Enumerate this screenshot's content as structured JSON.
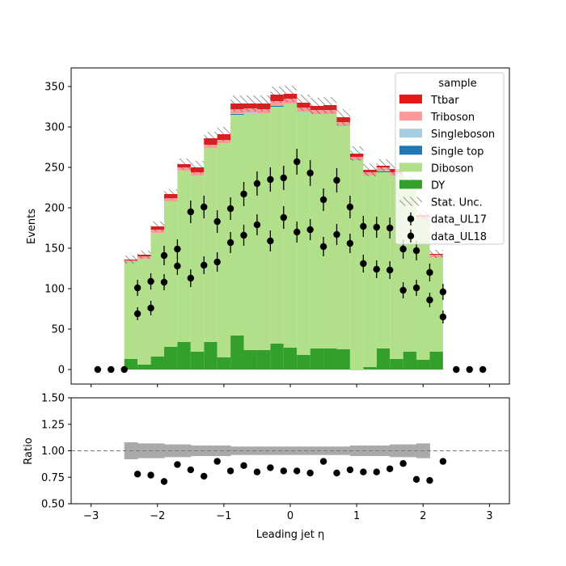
{
  "chart_data": [
    {
      "type": "bar",
      "ylabel": "Events",
      "xlim": [
        -3.3,
        3.3
      ],
      "ylim": [
        -18,
        373
      ],
      "yticks": [
        0,
        50,
        100,
        150,
        200,
        250,
        300,
        350
      ],
      "bin_edges": [
        -2.5,
        -2.3,
        -2.1,
        -1.9,
        -1.7,
        -1.5,
        -1.3,
        -1.1,
        -0.9,
        -0.7,
        -0.5,
        -0.3,
        -0.1,
        0.1,
        0.3,
        0.5,
        0.7,
        0.9,
        1.1,
        1.3,
        1.5,
        1.7,
        1.9,
        2.1,
        2.3
      ],
      "stack_order": [
        "DY",
        "Diboson",
        "Single top",
        "Singleboson",
        "Triboson",
        "Ttbar"
      ],
      "series": [
        {
          "name": "DY",
          "color": "#33a02c",
          "values": [
            13,
            6,
            16,
            28,
            34,
            22,
            34,
            15,
            42,
            24,
            24,
            32,
            27,
            18,
            26,
            26,
            25,
            -1,
            3,
            26,
            13,
            22,
            12,
            22
          ]
        },
        {
          "name": "Diboson",
          "color": "#b2df8a",
          "values": [
            120,
            131,
            153,
            180,
            212,
            218,
            240,
            265,
            273,
            293,
            293,
            293,
            302,
            300,
            290,
            290,
            276,
            260,
            237,
            218,
            227,
            205,
            174,
            117
          ]
        },
        {
          "name": "Single top",
          "color": "#1f78b4",
          "values": [
            0,
            0,
            0,
            0,
            0,
            0,
            0,
            0,
            1,
            0,
            0,
            1,
            0,
            0,
            0,
            0,
            0,
            0,
            0,
            1,
            0,
            0,
            0,
            0
          ]
        },
        {
          "name": "Singleboson",
          "color": "#a6cee3",
          "values": [
            0,
            0,
            0,
            0,
            0,
            0,
            0,
            0,
            1,
            1,
            0,
            0,
            0,
            1,
            0,
            0,
            0,
            0,
            0,
            1,
            0,
            0,
            0,
            0
          ]
        },
        {
          "name": "Triboson",
          "color": "#fb9a99",
          "values": [
            2,
            3,
            4,
            4,
            4,
            4,
            4,
            4,
            5,
            5,
            5,
            6,
            6,
            5,
            5,
            5,
            5,
            4,
            4,
            4,
            4,
            3,
            3,
            3
          ]
        },
        {
          "name": "Ttbar",
          "color": "#e31a1c",
          "values": [
            1,
            2,
            4,
            5,
            4,
            6,
            8,
            7,
            7,
            6,
            7,
            8,
            6,
            6,
            5,
            6,
            6,
            4,
            3,
            2,
            4,
            2,
            2,
            1
          ]
        }
      ],
      "stat_unc": [
        5,
        5,
        6,
        6,
        7,
        8,
        8,
        9,
        10,
        10,
        10,
        10,
        10,
        10,
        10,
        10,
        10,
        9,
        8,
        8,
        8,
        7,
        6,
        5
      ],
      "stat_unc_color": "#555555",
      "data": [
        {
          "name": "data_UL17",
          "x": [
            -2.9,
            -2.7,
            -2.5,
            -2.3,
            -2.1,
            -1.9,
            -1.7,
            -1.5,
            -1.3,
            -1.1,
            -0.9,
            -0.7,
            -0.5,
            -0.3,
            -0.1,
            0.1,
            0.3,
            0.5,
            0.7,
            0.9,
            1.1,
            1.3,
            1.5,
            1.7,
            1.9,
            2.1,
            2.3,
            2.5,
            2.7,
            2.9
          ],
          "y": [
            0,
            0,
            0,
            101,
            109,
            141,
            149,
            195,
            201,
            183,
            199,
            217,
            230,
            235,
            237,
            257,
            243,
            210,
            234,
            201,
            177,
            176,
            175,
            149,
            147,
            120,
            96,
            0,
            0,
            0
          ],
          "err": [
            0,
            0,
            0,
            10,
            10,
            12,
            12,
            14,
            14,
            14,
            14,
            15,
            15,
            15,
            15,
            16,
            16,
            14,
            15,
            14,
            13,
            13,
            13,
            12,
            12,
            11,
            10,
            0,
            0,
            0
          ]
        },
        {
          "name": "data_UL18",
          "x": [
            -2.3,
            -2.1,
            -1.9,
            -1.7,
            -1.5,
            -1.3,
            -1.1,
            -0.9,
            -0.7,
            -0.5,
            -0.3,
            -0.1,
            0.1,
            0.3,
            0.5,
            0.7,
            0.9,
            1.1,
            1.3,
            1.5,
            1.7,
            1.9,
            2.1,
            2.3
          ],
          "y": [
            69,
            76,
            108,
            128,
            113,
            129,
            133,
            157,
            166,
            179,
            159,
            188,
            170,
            173,
            152,
            167,
            156,
            131,
            124,
            123,
            98,
            101,
            86,
            65
          ],
          "err": [
            8,
            9,
            10,
            11,
            11,
            11,
            12,
            13,
            13,
            13,
            13,
            14,
            13,
            13,
            12,
            13,
            12,
            11,
            11,
            11,
            10,
            10,
            9,
            8
          ]
        }
      ],
      "legend": {
        "title": "sample",
        "placement": "upper-right",
        "entries": [
          "Ttbar",
          "Triboson",
          "Singleboson",
          "Single top",
          "Diboson",
          "DY",
          "Stat. Unc.",
          "data_UL17",
          "data_UL18"
        ]
      }
    },
    {
      "type": "scatter",
      "xlabel": "Leading jet  η",
      "ylabel": "Ratio",
      "xlim": [
        -3.3,
        3.3
      ],
      "ylim": [
        0.5,
        1.5
      ],
      "xticks": [
        -3,
        -2,
        -1,
        0,
        1,
        2,
        3
      ],
      "yticks": [
        "0.50",
        "0.75",
        "1.00",
        "1.25",
        "1.50"
      ],
      "reference_line": 1.0,
      "unc_band": {
        "color": "#aaaaaa",
        "lo": [
          0.92,
          0.93,
          0.93,
          0.94,
          0.94,
          0.95,
          0.95,
          0.95,
          0.96,
          0.96,
          0.96,
          0.96,
          0.96,
          0.96,
          0.96,
          0.96,
          0.96,
          0.95,
          0.95,
          0.95,
          0.94,
          0.94,
          0.93,
          0.93
        ],
        "hi": [
          1.08,
          1.07,
          1.07,
          1.06,
          1.06,
          1.05,
          1.05,
          1.05,
          1.04,
          1.04,
          1.04,
          1.04,
          1.04,
          1.04,
          1.04,
          1.04,
          1.04,
          1.05,
          1.05,
          1.05,
          1.06,
          1.06,
          1.07,
          1.07
        ]
      },
      "points": {
        "x": [
          -2.3,
          -2.1,
          -1.9,
          -1.7,
          -1.5,
          -1.3,
          -1.1,
          -0.9,
          -0.7,
          -0.5,
          -0.3,
          -0.1,
          0.1,
          0.3,
          0.5,
          0.7,
          0.9,
          1.1,
          1.3,
          1.5,
          1.7,
          1.9,
          2.1,
          2.3
        ],
        "y": [
          0.78,
          0.77,
          0.71,
          0.87,
          0.82,
          0.76,
          0.9,
          0.81,
          0.86,
          0.8,
          0.84,
          0.81,
          0.81,
          0.79,
          0.9,
          0.79,
          0.82,
          0.8,
          0.8,
          0.83,
          0.88,
          0.73,
          0.72,
          0.9
        ],
        "err": [
          0.03,
          0.03,
          0.02,
          0.03,
          0.03,
          0.02,
          0.03,
          0.02,
          0.03,
          0.02,
          0.02,
          0.02,
          0.02,
          0.02,
          0.02,
          0.02,
          0.02,
          0.02,
          0.02,
          0.02,
          0.03,
          0.02,
          0.02,
          0.03
        ]
      }
    }
  ]
}
